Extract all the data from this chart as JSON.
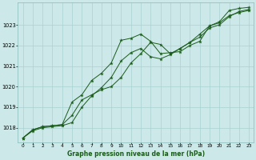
{
  "title": "Graphe pression niveau de la mer (hPa)",
  "bg_color": "#cce8e8",
  "grid_color": "#aad0d0",
  "line_color": "#1a5c1a",
  "xlim": [
    -0.5,
    23.5
  ],
  "ylim": [
    1017.3,
    1024.1
  ],
  "yticks": [
    1018,
    1019,
    1020,
    1021,
    1022,
    1023
  ],
  "xticks": [
    0,
    1,
    2,
    3,
    4,
    5,
    6,
    7,
    8,
    9,
    10,
    11,
    12,
    13,
    14,
    15,
    16,
    17,
    18,
    19,
    20,
    21,
    22,
    23
  ],
  "series1_x": [
    0,
    1,
    2,
    3,
    4,
    5,
    6,
    7,
    8,
    9,
    10,
    11,
    12,
    13,
    14,
    15,
    16,
    17,
    18,
    19,
    20,
    21,
    22,
    23
  ],
  "series1_y": [
    1017.5,
    1017.9,
    1018.05,
    1018.1,
    1018.15,
    1018.6,
    1019.35,
    1019.6,
    1019.85,
    1020.0,
    1020.45,
    1021.15,
    1021.6,
    1022.15,
    1022.05,
    1021.6,
    1021.85,
    1022.15,
    1022.55,
    1022.95,
    1023.1,
    1023.45,
    1023.6,
    1023.7
  ],
  "series2_x": [
    0,
    1,
    2,
    3,
    4,
    5,
    6,
    7,
    8,
    9,
    10,
    11,
    12,
    13,
    14,
    15,
    16,
    17,
    18,
    19,
    20,
    21,
    22,
    23
  ],
  "series2_y": [
    1017.5,
    1017.9,
    1018.05,
    1018.1,
    1018.15,
    1019.25,
    1019.6,
    1020.3,
    1020.65,
    1021.15,
    1022.25,
    1022.35,
    1022.55,
    1022.2,
    1021.6,
    1021.65,
    1021.7,
    1022.0,
    1022.2,
    1022.95,
    1023.15,
    1023.7,
    1023.8,
    1023.85
  ],
  "series3_x": [
    0,
    1,
    2,
    3,
    4,
    5,
    6,
    7,
    8,
    9,
    10,
    11,
    12,
    13,
    14,
    15,
    16,
    17,
    18,
    19,
    20,
    21,
    22,
    23
  ],
  "series3_y": [
    1017.5,
    1017.85,
    1018.0,
    1018.05,
    1018.1,
    1018.25,
    1019.0,
    1019.55,
    1019.95,
    1020.45,
    1021.25,
    1021.65,
    1021.85,
    1021.45,
    1021.35,
    1021.55,
    1021.85,
    1022.15,
    1022.4,
    1022.85,
    1023.0,
    1023.4,
    1023.65,
    1023.75
  ]
}
